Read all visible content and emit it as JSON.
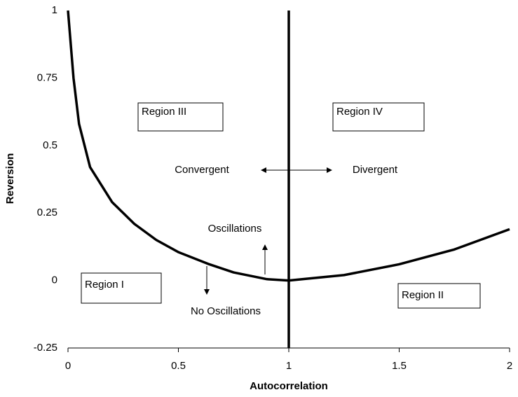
{
  "chart_data": {
    "type": "line",
    "xlabel": "Autocorrelation",
    "ylabel": "Reversion",
    "xlim": [
      0,
      2
    ],
    "ylim": [
      -0.25,
      1
    ],
    "xticks": [
      0,
      0.5,
      1,
      1.5,
      2
    ],
    "yticks": [
      -0.25,
      0,
      0.25,
      0.5,
      0.75,
      1
    ],
    "series": [
      {
        "color": "#000000",
        "x": [
          0,
          0.025,
          0.05,
          0.1,
          0.2,
          0.3,
          0.4,
          0.5,
          0.64,
          0.75,
          0.9,
          1,
          1.25,
          1.5,
          1.75,
          2
        ],
        "values": [
          1,
          0.75,
          0.58,
          0.42,
          0.29,
          0.21,
          0.15,
          0.105,
          0.06,
          0.03,
          0.005,
          0,
          0.02,
          0.06,
          0.115,
          0.19
        ]
      },
      {
        "color": "#000000",
        "x": [
          1,
          1
        ],
        "values": [
          -0.25,
          1
        ]
      }
    ],
    "annotations": [
      "Region III",
      "Region IV",
      "Convergent",
      "Divergent",
      "Oscillations",
      "No Oscillations",
      "Region I",
      "Region II"
    ]
  }
}
